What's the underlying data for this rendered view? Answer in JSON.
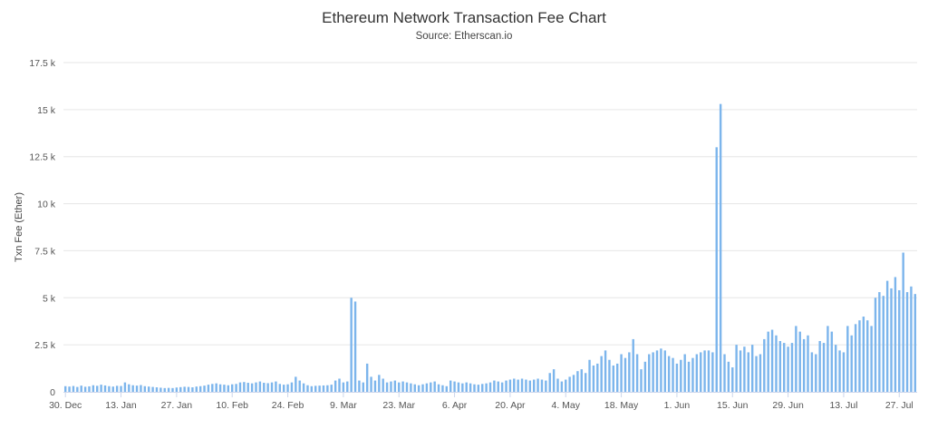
{
  "chart_data": {
    "type": "bar",
    "title": "Ethereum Network Transaction Fee Chart",
    "subtitle": "Source: Etherscan.io",
    "ylabel": "Txn Fee (Ether)",
    "xlabel": "",
    "ylim": [
      0,
      17500
    ],
    "grid": true,
    "legend": "none",
    "bar_color": "#7cb5ec",
    "y_ticks": [
      {
        "value": 0,
        "label": "0"
      },
      {
        "value": 2500,
        "label": "2.5 k"
      },
      {
        "value": 5000,
        "label": "5 k"
      },
      {
        "value": 7500,
        "label": "7.5 k"
      },
      {
        "value": 10000,
        "label": "10 k"
      },
      {
        "value": 12500,
        "label": "12.5 k"
      },
      {
        "value": 15000,
        "label": "15 k"
      },
      {
        "value": 17500,
        "label": "17.5 k"
      }
    ],
    "x_ticks": [
      {
        "index": 0,
        "label": "30. Dec"
      },
      {
        "index": 14,
        "label": "13. Jan"
      },
      {
        "index": 28,
        "label": "27. Jan"
      },
      {
        "index": 42,
        "label": "10. Feb"
      },
      {
        "index": 56,
        "label": "24. Feb"
      },
      {
        "index": 70,
        "label": "9. Mar"
      },
      {
        "index": 84,
        "label": "23. Mar"
      },
      {
        "index": 98,
        "label": "6. Apr"
      },
      {
        "index": 112,
        "label": "20. Apr"
      },
      {
        "index": 126,
        "label": "4. May"
      },
      {
        "index": 140,
        "label": "18. May"
      },
      {
        "index": 154,
        "label": "1. Jun"
      },
      {
        "index": 168,
        "label": "15. Jun"
      },
      {
        "index": 182,
        "label": "29. Jun"
      },
      {
        "index": 196,
        "label": "13. Jul"
      },
      {
        "index": 210,
        "label": "27. Jul"
      }
    ],
    "start_date": "2019-12-30",
    "values": [
      300,
      280,
      310,
      260,
      330,
      270,
      290,
      350,
      320,
      380,
      340,
      300,
      280,
      320,
      310,
      500,
      400,
      350,
      330,
      360,
      300,
      280,
      260,
      240,
      220,
      200,
      210,
      200,
      230,
      250,
      270,
      260,
      240,
      280,
      300,
      330,
      380,
      420,
      450,
      400,
      380,
      350,
      400,
      420,
      500,
      520,
      480,
      450,
      500,
      550,
      480,
      460,
      500,
      550,
      420,
      380,
      400,
      500,
      800,
      600,
      450,
      350,
      300,
      320,
      330,
      340,
      350,
      380,
      600,
      700,
      500,
      550,
      5000,
      4800,
      600,
      500,
      1500,
      800,
      600,
      900,
      700,
      500,
      550,
      600,
      500,
      550,
      500,
      450,
      400,
      350,
      400,
      450,
      500,
      550,
      400,
      350,
      300,
      600,
      550,
      500,
      450,
      500,
      450,
      400,
      380,
      420,
      450,
      500,
      600,
      550,
      500,
      600,
      650,
      700,
      650,
      700,
      650,
      600,
      650,
      700,
      650,
      600,
      1000,
      1200,
      700,
      550,
      650,
      800,
      900,
      1100,
      1200,
      1000,
      1700,
      1400,
      1500,
      1900,
      2200,
      1700,
      1400,
      1500,
      2000,
      1800,
      2100,
      2800,
      2000,
      1200,
      1600,
      2000,
      2100,
      2200,
      2300,
      2200,
      1900,
      1800,
      1500,
      1700,
      2000,
      1600,
      1800,
      2000,
      2100,
      2200,
      2200,
      2100,
      13000,
      15300,
      2000,
      1600,
      1300,
      2500,
      2200,
      2400,
      2100,
      2500,
      1900,
      2000,
      2800,
      3200,
      3300,
      3000,
      2700,
      2600,
      2400,
      2600,
      3500,
      3200,
      2800,
      3000,
      2100,
      2000,
      2700,
      2600,
      3500,
      3200,
      2500,
      2200,
      2100,
      3500,
      3000,
      3600,
      3800,
      4000,
      3800,
      3500,
      5000,
      5300,
      5100,
      5900,
      5500,
      6100,
      5400,
      7400,
      5300,
      5600,
      5200
    ]
  }
}
